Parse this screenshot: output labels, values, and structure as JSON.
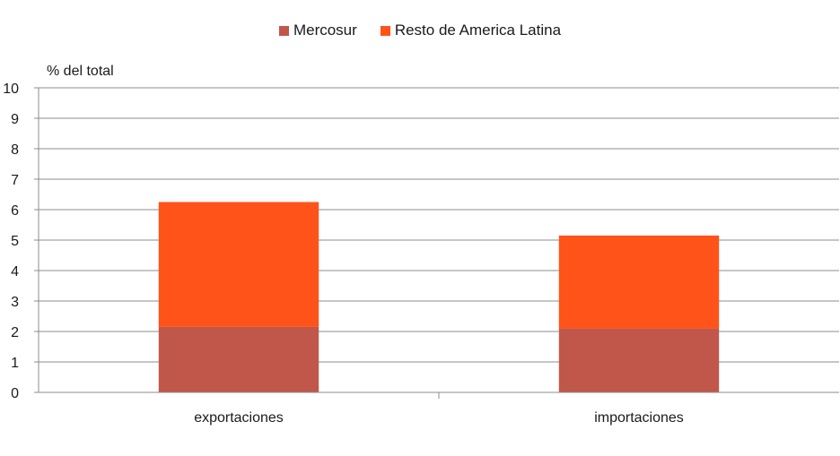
{
  "chart_data": {
    "type": "bar",
    "stacked": true,
    "unit_label": "% del total",
    "categories": [
      "exportaciones",
      "importaciones"
    ],
    "series": [
      {
        "name": "Mercosur",
        "values": [
          2.15,
          2.1
        ],
        "color": "#c0574a"
      },
      {
        "name": "Resto de America Latina",
        "values": [
          4.1,
          3.05
        ],
        "color": "#ff5319"
      }
    ],
    "ylim": [
      0,
      10
    ],
    "yticks": [
      0,
      1,
      2,
      3,
      4,
      5,
      6,
      7,
      8,
      9,
      10
    ],
    "grid": true,
    "legend_position": "top-center"
  }
}
